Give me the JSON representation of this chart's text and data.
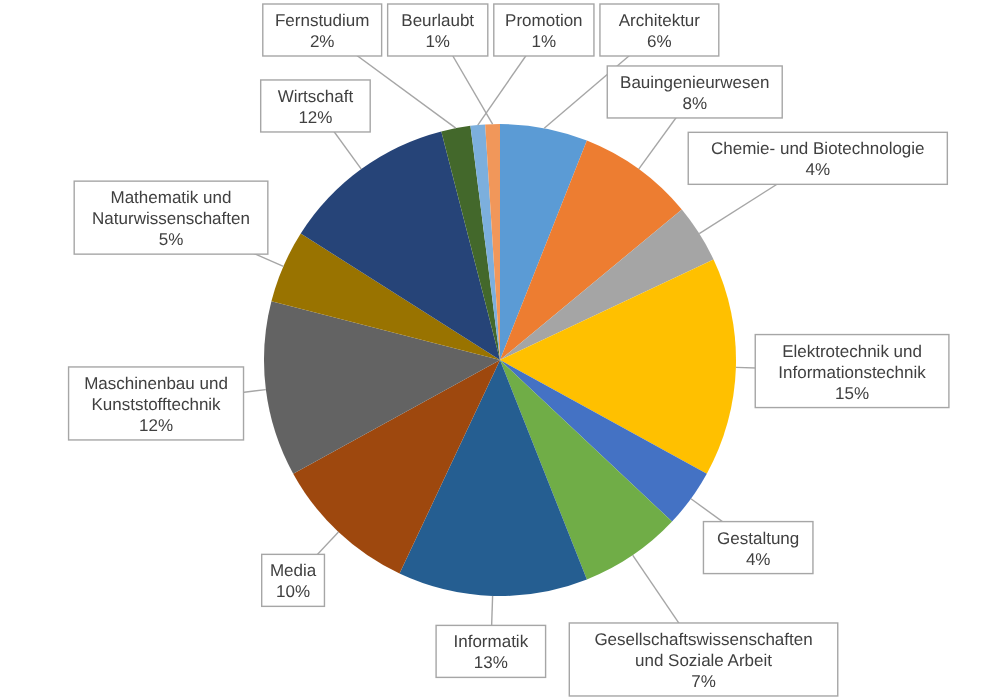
{
  "chart_data": {
    "type": "pie",
    "categories": [
      "Architektur",
      "Bauingenieurwesen",
      "Chemie- und Biotechnologie",
      "Elektrotechnik und Informationstechnik",
      "Gestaltung",
      "Gesellschaftswissenschaften und Soziale Arbeit",
      "Informatik",
      "Media",
      "Maschinenbau und Kunststofftechnik",
      "Mathematik und Naturwissenschaften",
      "Wirtschaft",
      "Fernstudium",
      "Promotion",
      "Beurlaubt"
    ],
    "values": [
      6,
      8,
      4,
      15,
      4,
      7,
      13,
      10,
      12,
      5,
      12,
      2,
      1,
      1
    ],
    "colors": [
      "#5b9bd5",
      "#ed7d31",
      "#a5a5a5",
      "#ffc000",
      "#4472c4",
      "#70ad47",
      "#255e91",
      "#9e480e",
      "#636363",
      "#997300",
      "#264478",
      "#43682b",
      "#7cafdd",
      "#f1975a"
    ],
    "value_labels": [
      "6%",
      "8%",
      "4%",
      "15%",
      "4%",
      "7%",
      "13%",
      "10%",
      "12%",
      "5%",
      "12%",
      "2%",
      "1%",
      "1%"
    ]
  }
}
